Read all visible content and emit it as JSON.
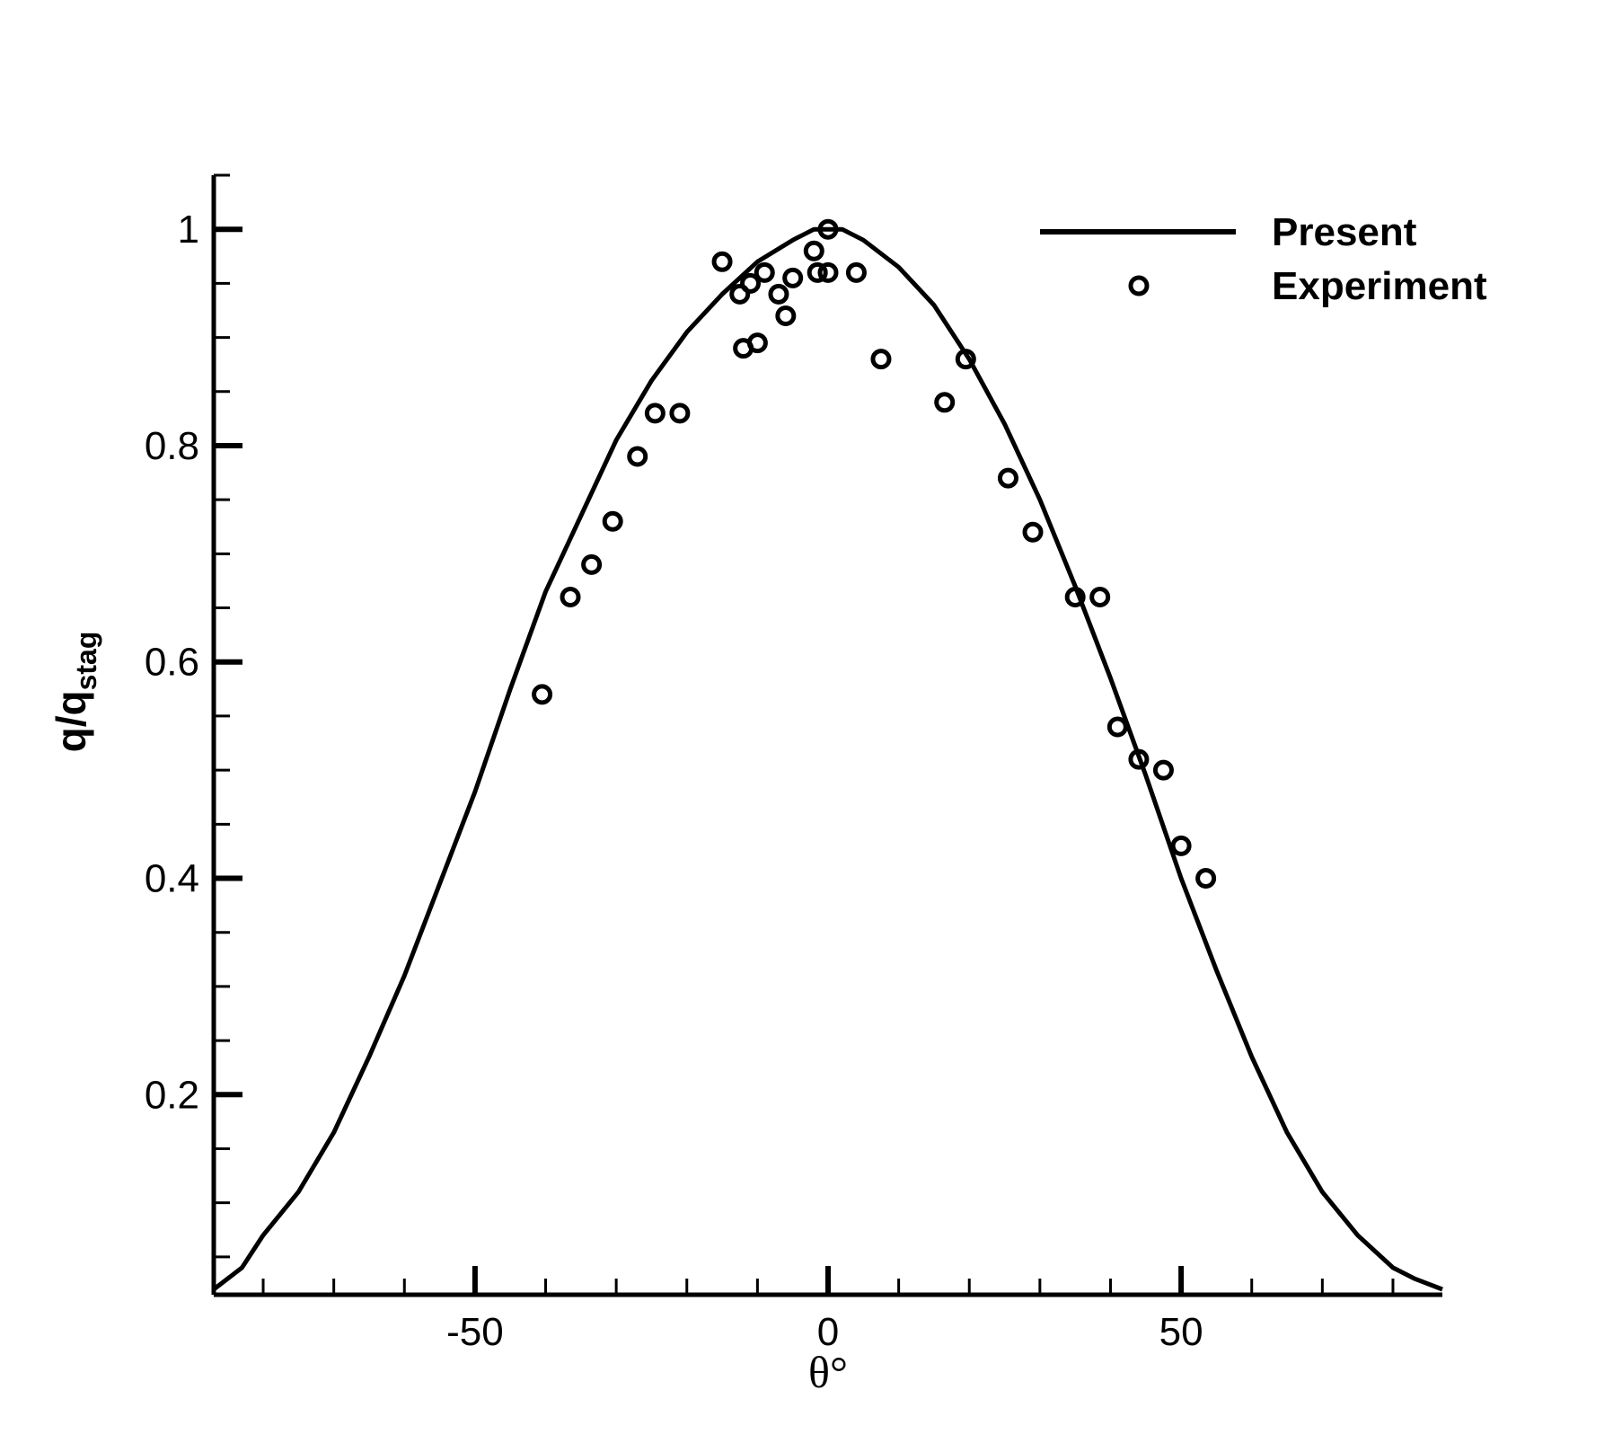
{
  "chart_data": {
    "type": "line",
    "title": "",
    "xlabel": "θ°",
    "ylabel_main": "q/q",
    "ylabel_sub": "stag",
    "xlim": [
      -87,
      87
    ],
    "ylim": [
      0.015,
      1.05
    ],
    "x_major_ticks": [
      -50,
      0,
      50
    ],
    "x_minor_ticks": [
      -80,
      -70,
      -60,
      -40,
      -30,
      -20,
      -10,
      10,
      20,
      30,
      40,
      60,
      70,
      80
    ],
    "y_major_ticks": [
      0.2,
      0.4,
      0.6,
      0.8,
      1
    ],
    "y_minor_ticks": [
      0.05,
      0.1,
      0.15,
      0.25,
      0.3,
      0.35,
      0.45,
      0.5,
      0.55,
      0.65,
      0.7,
      0.75,
      0.85,
      0.9,
      0.95,
      1.05
    ],
    "x_tick_labels": [
      "-50",
      "0",
      "50"
    ],
    "y_tick_labels": [
      "0.2",
      "0.4",
      "0.6",
      "0.8",
      "1"
    ],
    "grid": false,
    "legend_position": "top-right",
    "series": [
      {
        "name": "Present",
        "style": "solid-line",
        "color": "#000000",
        "x": [
          -87,
          -83,
          -80,
          -75,
          -70,
          -65,
          -60,
          -55,
          -50,
          -45,
          -40,
          -35,
          -30,
          -25,
          -20,
          -15,
          -10,
          -5,
          -2,
          0,
          2,
          5,
          10,
          15,
          20,
          25,
          30,
          35,
          40,
          45,
          50,
          55,
          60,
          65,
          70,
          75,
          80,
          83,
          87
        ],
        "y": [
          0.02,
          0.04,
          0.07,
          0.11,
          0.165,
          0.235,
          0.31,
          0.395,
          0.48,
          0.575,
          0.665,
          0.735,
          0.805,
          0.86,
          0.905,
          0.94,
          0.97,
          0.99,
          1.0,
          1.0,
          1.0,
          0.99,
          0.965,
          0.93,
          0.88,
          0.82,
          0.75,
          0.67,
          0.585,
          0.495,
          0.4,
          0.315,
          0.235,
          0.165,
          0.11,
          0.07,
          0.04,
          0.03,
          0.02
        ]
      },
      {
        "name": "Experiment",
        "style": "open-circle",
        "color": "#000000",
        "x": [
          -40.5,
          -36.5,
          -33.5,
          -30.5,
          -27,
          -24.5,
          -21,
          -15,
          -12.5,
          -12,
          -11,
          -10,
          -9,
          -7,
          -6,
          -5,
          -2,
          -1.5,
          0,
          0,
          4,
          7.5,
          16.5,
          19.5,
          25.5,
          29,
          35,
          38.5,
          41,
          44,
          47.5,
          50,
          53.5
        ],
        "y": [
          0.57,
          0.66,
          0.69,
          0.73,
          0.79,
          0.83,
          0.83,
          0.97,
          0.94,
          0.89,
          0.95,
          0.895,
          0.96,
          0.94,
          0.92,
          0.955,
          0.98,
          0.96,
          1.0,
          0.96,
          0.96,
          0.88,
          0.84,
          0.88,
          0.77,
          0.72,
          0.66,
          0.66,
          0.54,
          0.51,
          0.5,
          0.43,
          0.4
        ]
      }
    ]
  }
}
